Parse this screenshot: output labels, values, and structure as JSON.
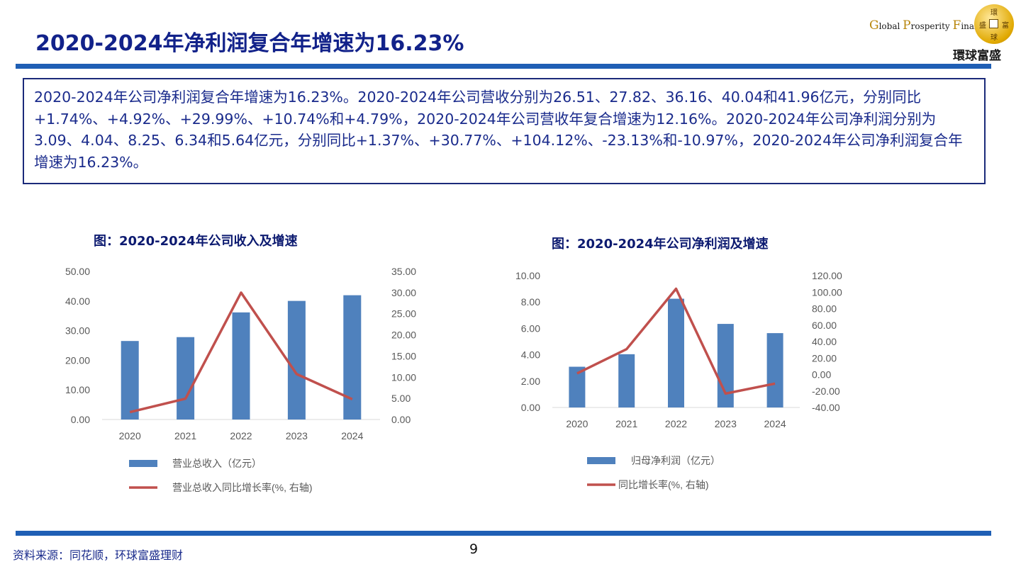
{
  "page": {
    "title": "2020-2024年净利润复合年增速为16.23%",
    "summary": "2020-2024年公司净利润复合年增速为16.23%。2020-2024年公司营收分别为26.51、27.82、36.16、40.04和41.96亿元，分别同比+1.74%、+4.92%、+29.99%、+10.74%和+4.79%，2020-2024年公司营收年复合增速为12.16%。2020-2024年公司净利润分别为3.09、4.04、8.25、6.34和5.64亿元，分别同比+1.37%、+30.77%、+104.12%、-23.13%和-10.97%，2020-2024年公司净利润复合年增速为16.23%。",
    "source": "资料来源：同花顺，环球富盛理财",
    "page_number": "9"
  },
  "logo": {
    "en_parts": [
      "G",
      "lobal ",
      "P",
      "rosperity ",
      "F",
      "inancial"
    ],
    "zh": "環球富盛",
    "coin_chars": [
      "環",
      "富",
      "盛",
      "球"
    ]
  },
  "colors": {
    "bar": "#4f81bd",
    "line": "#c0504d",
    "title": "#12228a",
    "axis_text": "#595959",
    "band": "#1f5fb5"
  },
  "chart_data": [
    {
      "type": "bar",
      "title": "图：2020-2024年公司收入及增速",
      "categories": [
        "2020",
        "2021",
        "2022",
        "2023",
        "2024"
      ],
      "series": [
        {
          "name": "营业总收入（亿元）",
          "type": "bar",
          "axis": "left",
          "values": [
            26.51,
            27.82,
            36.16,
            40.04,
            41.96
          ]
        },
        {
          "name": "营业总收入同比增长率(%, 右轴)",
          "type": "line",
          "axis": "right",
          "values": [
            1.74,
            4.92,
            29.99,
            10.74,
            4.79
          ]
        }
      ],
      "ylim": [
        0,
        50
      ],
      "yticks": [
        "0.00",
        "10.00",
        "20.00",
        "30.00",
        "40.00",
        "50.00"
      ],
      "y2lim": [
        0,
        35
      ],
      "y2ticks": [
        "0.00",
        "5.00",
        "10.00",
        "15.00",
        "20.00",
        "25.00",
        "30.00",
        "35.00"
      ],
      "legend": "bottom"
    },
    {
      "type": "bar",
      "title": "图：2020-2024年公司净利润及增速",
      "categories": [
        "2020",
        "2021",
        "2022",
        "2023",
        "2024"
      ],
      "series": [
        {
          "name": "归母净利润（亿元）",
          "type": "bar",
          "axis": "left",
          "values": [
            3.09,
            4.04,
            8.25,
            6.34,
            5.64
          ]
        },
        {
          "name": "同比增长率(%, 右轴)",
          "type": "line",
          "axis": "right",
          "values": [
            1.37,
            30.77,
            104.12,
            -23.13,
            -10.97
          ]
        }
      ],
      "ylim": [
        0,
        10
      ],
      "yticks": [
        "0.00",
        "2.00",
        "4.00",
        "6.00",
        "8.00",
        "10.00"
      ],
      "y2lim": [
        -40,
        120
      ],
      "y2ticks": [
        "-40.00",
        "-20.00",
        "0.00",
        "20.00",
        "40.00",
        "60.00",
        "80.00",
        "100.00",
        "120.00"
      ],
      "legend": "bottom"
    }
  ]
}
